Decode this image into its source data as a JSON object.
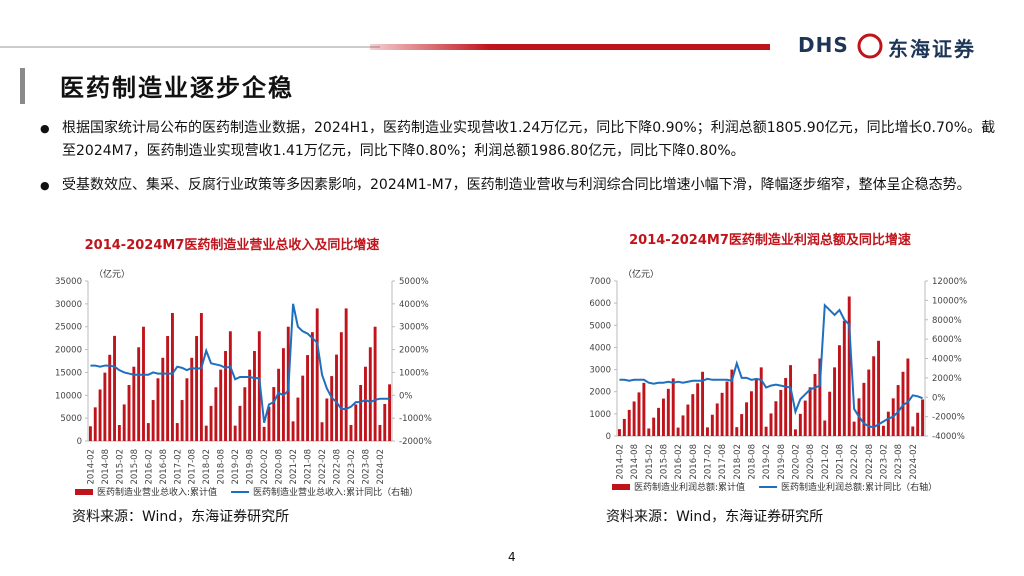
{
  "header": {
    "logo": "DHS",
    "company": "东海证券"
  },
  "title": "医药制造业逐步企稳",
  "bullets": [
    "根据国家统计局公布的医药制造业数据，2024H1，医药制造业实现营收1.24万亿元，同比下降0.90%；利润总额1805.90亿元，同比增长0.70%。截至2024M7，医药制造业实现营收1.41万亿元，同比下降0.80%；利润总额1986.80亿元，同比下降0.80%。",
    "受基数效应、集采、反腐行业政策等多因素影响，2024M1-M7，医药制造业营收与利润综合同比增速小幅下滑，降幅逐步缩窄，整体呈企稳态势。"
  ],
  "page_number": "4",
  "chart_data": [
    {
      "type": "combo",
      "title": "2014-2024M7医药制造业营业总收入及同比增速",
      "y_unit": "（亿元）",
      "source": "资料来源：Wind，东海证券研究所",
      "categories": [
        "2014-02",
        null,
        null,
        "2014-08",
        null,
        null,
        "2015-02",
        null,
        null,
        "2015-08",
        null,
        null,
        "2016-02",
        null,
        null,
        "2016-08",
        null,
        null,
        "2017-02",
        null,
        null,
        "2017-08",
        null,
        null,
        "2018-02",
        null,
        null,
        "2018-08",
        null,
        null,
        "2019-02",
        null,
        null,
        "2019-08",
        null,
        null,
        "2020-02",
        null,
        null,
        "2020-08",
        null,
        null,
        "2021-02",
        null,
        null,
        "2021-08",
        null,
        null,
        "2022-02",
        null,
        null,
        "2022-08",
        null,
        null,
        "2023-02",
        null,
        null,
        "2023-08",
        null,
        null,
        "2024-02",
        null,
        null
      ],
      "ylim": [
        0,
        35000
      ],
      "yticks": [
        0,
        5000,
        10000,
        15000,
        20000,
        25000,
        30000,
        35000
      ],
      "y2lim": [
        -2000,
        5000
      ],
      "y2ticks": [
        {
          "value": -2000,
          "label": "-2000%"
        },
        {
          "value": -1000,
          "label": "-1000%"
        },
        {
          "value": 0,
          "label": "0%"
        },
        {
          "value": 1000,
          "label": "1000%"
        },
        {
          "value": 2000,
          "label": "2000%"
        },
        {
          "value": 3000,
          "label": "3000%"
        },
        {
          "value": 4000,
          "label": "4000%"
        },
        {
          "value": 5000,
          "label": "5000%"
        }
      ],
      "series": [
        {
          "name": "医药制造业营业总收入:累计值",
          "type": "bar",
          "color": "#c0141c",
          "values": [
            3220,
            7360,
            11270,
            14950,
            18860,
            23000,
            3500,
            8000,
            12250,
            16250,
            20500,
            25000,
            3920,
            8960,
            13720,
            18200,
            22960,
            28000,
            3920,
            8960,
            13720,
            18200,
            22960,
            28000,
            3360,
            7680,
            11760,
            15600,
            19680,
            24000,
            3360,
            7680,
            11760,
            15600,
            19680,
            24000,
            3100,
            7500,
            11800,
            15800,
            20300,
            25000,
            4300,
            9500,
            14300,
            18800,
            23800,
            29000,
            4100,
            9300,
            14200,
            18900,
            23800,
            29000,
            3500,
            8000,
            12250,
            16250,
            20500,
            25000,
            3500,
            8100,
            12400
          ]
        },
        {
          "name": "医药制造业营业总收入:累计同比（右轴）",
          "type": "line",
          "axis": "y2",
          "color": "#1f6fbf",
          "values": [
            1300,
            1300,
            1250,
            1300,
            1300,
            1250,
            1100,
            1000,
            950,
            900,
            900,
            900,
            900,
            1000,
            950,
            950,
            950,
            950,
            1250,
            1200,
            1100,
            1200,
            1150,
            1200,
            1950,
            1400,
            1350,
            1300,
            1200,
            1250,
            700,
            800,
            800,
            800,
            750,
            750,
            -1200,
            -400,
            -300,
            100,
            0,
            200,
            4000,
            3000,
            2800,
            2700,
            2500,
            2300,
            900,
            300,
            -100,
            -300,
            -600,
            -600,
            -500,
            -300,
            -300,
            -200,
            -300,
            -200,
            -150,
            -150,
            -150
          ]
        }
      ]
    },
    {
      "type": "combo",
      "title": "2014-2024M7医药制造业利润总额及同比增速",
      "y_unit": "（亿元）",
      "source": "资料来源：Wind，东海证券研究所",
      "categories": [
        "2014-02",
        null,
        null,
        "2014-08",
        null,
        null,
        "2015-02",
        null,
        null,
        "2015-08",
        null,
        null,
        "2016-02",
        null,
        null,
        "2016-08",
        null,
        null,
        "2017-02",
        null,
        null,
        "2017-08",
        null,
        null,
        "2018-02",
        null,
        null,
        "2018-08",
        null,
        null,
        "2019-02",
        null,
        null,
        "2019-08",
        null,
        null,
        "2020-02",
        null,
        null,
        "2020-08",
        null,
        null,
        "2021-02",
        null,
        null,
        "2021-08",
        null,
        null,
        "2022-02",
        null,
        null,
        "2022-08",
        null,
        null,
        "2023-02",
        null,
        null,
        "2023-08",
        null,
        null,
        "2024-02",
        null,
        null
      ],
      "ylim": [
        0,
        7000
      ],
      "yticks": [
        0,
        1000,
        2000,
        3000,
        4000,
        5000,
        6000,
        7000
      ],
      "y2lim": [
        -4000,
        12000
      ],
      "y2ticks": [
        {
          "value": -4000,
          "label": "-4000%"
        },
        {
          "value": -2000,
          "label": "-2000%"
        },
        {
          "value": 0,
          "label": "0%"
        },
        {
          "value": 2000,
          "label": "2000%"
        },
        {
          "value": 4000,
          "label": "4000%"
        },
        {
          "value": 6000,
          "label": "6000%"
        },
        {
          "value": 8000,
          "label": "8000%"
        },
        {
          "value": 10000,
          "label": "10000%"
        },
        {
          "value": 12000,
          "label": "12000%"
        }
      ],
      "series": [
        {
          "name": "医药制造业利润总额:累计值",
          "type": "bar",
          "color": "#c0141c",
          "values": [
            310,
            770,
            1180,
            1560,
            1970,
            2400,
            340,
            830,
            1270,
            1690,
            2130,
            2600,
            380,
            930,
            1420,
            1890,
            2380,
            2900,
            390,
            960,
            1470,
            1950,
            2460,
            3000,
            400,
            990,
            1520,
            2020,
            2540,
            3100,
            420,
            1020,
            1570,
            2080,
            2620,
            3200,
            300,
            1000,
            1600,
            2200,
            2800,
            3500,
            700,
            2000,
            3100,
            4100,
            5200,
            6300,
            650,
            1700,
            2400,
            3000,
            3600,
            4300,
            460,
            1100,
            1700,
            2300,
            2900,
            3500,
            430,
            1050,
            1650
          ]
        },
        {
          "name": "医药制造业利润总额:累计同比（右轴）",
          "type": "line",
          "axis": "y2",
          "color": "#1f6fbf",
          "values": [
            1800,
            1800,
            1700,
            1800,
            1800,
            1800,
            1500,
            1400,
            1500,
            1500,
            1600,
            1500,
            1600,
            1500,
            1600,
            1700,
            1700,
            1700,
            1900,
            1800,
            1800,
            1800,
            1800,
            1700,
            3500,
            2000,
            2000,
            1800,
            1900,
            1800,
            1000,
            1200,
            1300,
            1200,
            1100,
            1000,
            -1500,
            -200,
            300,
            800,
            1000,
            1200,
            9500,
            9000,
            8500,
            9000,
            8000,
            7500,
            -1200,
            -2000,
            -2700,
            -3000,
            -3100,
            -2800,
            -2500,
            -2200,
            -2000,
            -1500,
            -800,
            -500,
            200,
            100,
            -100
          ]
        }
      ]
    }
  ]
}
